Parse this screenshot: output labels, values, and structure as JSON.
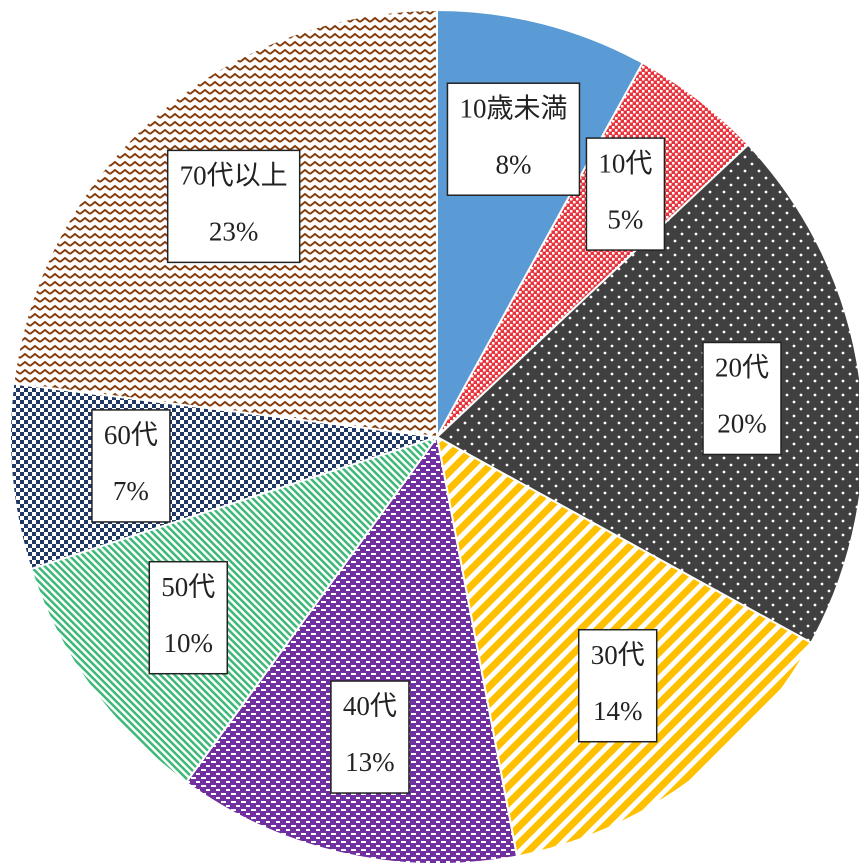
{
  "chart_data": {
    "type": "pie",
    "categories": [
      "10歳未満",
      "10代",
      "20代",
      "30代",
      "40代",
      "50代",
      "60代",
      "70代以上"
    ],
    "values": [
      8,
      5,
      20,
      14,
      13,
      10,
      7,
      23
    ],
    "value_labels": [
      "8%",
      "5%",
      "20%",
      "14%",
      "13%",
      "10%",
      "7%",
      "23%"
    ],
    "colors": [
      "#5b9bd5",
      "#e8343c",
      "#404040",
      "#ffc000",
      "#7030a0",
      "#3cb878",
      "#1f3864",
      "#843c0c"
    ],
    "patterns": [
      "solid",
      "dots-small",
      "dots",
      "diagonal",
      "dashes",
      "diagonal-fine",
      "checker",
      "zigzag"
    ]
  }
}
